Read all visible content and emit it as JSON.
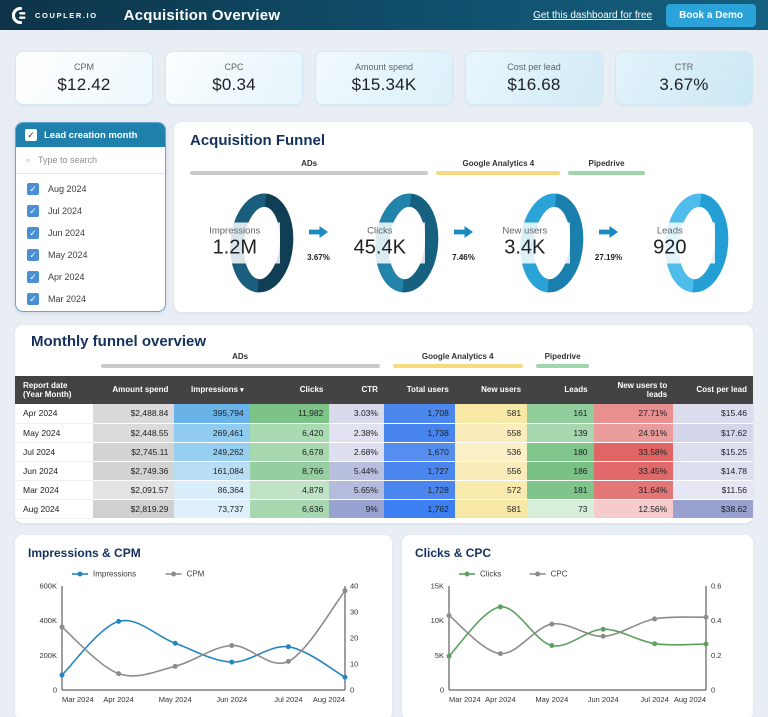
{
  "icons": {
    "check": "✓",
    "sort_desc": "▾",
    "search": "magnifier",
    "arrow": "right-arrow"
  },
  "header": {
    "brand": "COUPLER.IO",
    "title": "Acquisition Overview",
    "link_label": "Get this dashboard for free",
    "cta_label": "Book a Demo"
  },
  "kpis": [
    {
      "label": "CPM",
      "value": "$12.42"
    },
    {
      "label": "CPC",
      "value": "$0.34"
    },
    {
      "label": "Amount spend",
      "value": "$15.34K"
    },
    {
      "label": "Cost per lead",
      "value": "$16.68"
    },
    {
      "label": "CTR",
      "value": "3.67%"
    }
  ],
  "filter": {
    "title": "Lead creation month",
    "search_placeholder": "Type to search",
    "options": [
      {
        "label": "Aug 2024",
        "checked": true
      },
      {
        "label": "Jul 2024",
        "checked": true
      },
      {
        "label": "Jun 2024",
        "checked": true
      },
      {
        "label": "May 2024",
        "checked": true
      },
      {
        "label": "Apr 2024",
        "checked": true
      },
      {
        "label": "Mar 2024",
        "checked": true
      }
    ]
  },
  "funnel": {
    "title": "Acquisition Funnel",
    "groups": [
      {
        "label": "ADs",
        "color": "#c9c9c9",
        "width_pct": 47
      },
      {
        "label": "Google Analytics 4",
        "color": "#f7da7d",
        "width_pct": 24.5
      },
      {
        "label": "Pipedrive",
        "color": "#9fd6aa",
        "width_pct": 15
      }
    ],
    "stages": [
      {
        "label": "Impressions",
        "value": "1.2M",
        "ring_light": "#1a5d7c",
        "ring_dark": "#0f3e55"
      },
      {
        "label": "Clicks",
        "value": "45.4K",
        "ring_light": "#2384ab",
        "ring_dark": "#166080"
      },
      {
        "label": "New users",
        "value": "3.4K",
        "ring_light": "#2aa4d8",
        "ring_dark": "#1b7fae"
      },
      {
        "label": "Leads",
        "value": "920",
        "ring_light": "#4fbdec",
        "ring_dark": "#249fd6"
      }
    ],
    "transitions": [
      "3.67%",
      "7.46%",
      "27.19%"
    ]
  },
  "table": {
    "title": "Monthly funnel overview",
    "groups": [
      {
        "label": "ADs",
        "color": "#c9c9c9",
        "left_pct": 11.6,
        "width_pct": 37.8
      },
      {
        "label": "Google Analytics 4",
        "color": "#f7da7d",
        "left_pct": 51.2,
        "width_pct": 17.6
      },
      {
        "label": "Pipedrive",
        "color": "#9fd6aa",
        "left_pct": 70.6,
        "width_pct": 7.2
      }
    ],
    "columns": [
      "Report date (Year Month)",
      "Amount spend",
      "Impressions",
      "Clicks",
      "CTR",
      "Total users",
      "New users",
      "Leads",
      "New users to leads",
      "Cost per lead"
    ],
    "sorted_column": "Impressions",
    "column_widths_pct": [
      10.6,
      11,
      10.2,
      10.8,
      7.4,
      9.6,
      9.8,
      9,
      10.8,
      10.8
    ],
    "rows": [
      [
        "Apr 2024",
        "$2,488.84",
        "395,794",
        "11,982",
        "3.03%",
        "1,708",
        "581",
        "161",
        "27.71%",
        "$15.46"
      ],
      [
        "May 2024",
        "$2,448.55",
        "269,461",
        "6,420",
        "2.38%",
        "1,738",
        "558",
        "139",
        "24.91%",
        "$17.62"
      ],
      [
        "Jul 2024",
        "$2,745.11",
        "249,262",
        "6,678",
        "2.68%",
        "1,670",
        "536",
        "180",
        "33.58%",
        "$15.25"
      ],
      [
        "Jun 2024",
        "$2,749.36",
        "161,084",
        "8,766",
        "5.44%",
        "1,727",
        "556",
        "186",
        "33.45%",
        "$14.78"
      ],
      [
        "Mar 2024",
        "$2,091.57",
        "86,364",
        "4,878",
        "5.65%",
        "1,728",
        "572",
        "181",
        "31.64%",
        "$11.56"
      ],
      [
        "Aug 2024",
        "$2,819.29",
        "73,737",
        "6,636",
        "9%",
        "1,762",
        "581",
        "73",
        "12.56%",
        "$38.62"
      ]
    ],
    "cell_colors": [
      [
        "#ffffff",
        "#dadada",
        "#68b4e9",
        "#7cc387",
        "#d8daec",
        "#4c87ee",
        "#f8e8a6",
        "#92cd9c",
        "#e88f8f",
        "#dbddee"
      ],
      [
        "#ffffff",
        "#dbdbdb",
        "#90cbf0",
        "#aadab1",
        "#e1e2f1",
        "#4784ee",
        "#faedbb",
        "#a8d8af",
        "#eb9d9d",
        "#d4d7eb"
      ],
      [
        "#ffffff",
        "#d3d3d3",
        "#97cff1",
        "#a7d8ae",
        "#dddff0",
        "#568ef0",
        "#fbf0c6",
        "#80c58c",
        "#e06666",
        "#dcdeee"
      ],
      [
        "#ffffff",
        "#d3d3d3",
        "#b8def6",
        "#95cf9f",
        "#b8bede",
        "#4a86ee",
        "#faecb9",
        "#79c185",
        "#e16969",
        "#dddfef"
      ],
      [
        "#ffffff",
        "#e3e3e3",
        "#d9edfb",
        "#bfe3c4",
        "#b5bbdd",
        "#4a86ee",
        "#f9eaae",
        "#7fc48b",
        "#e37676",
        "#e6e7f4"
      ],
      [
        "#ffffff",
        "#d0d0d0",
        "#def0fc",
        "#a8d8af",
        "#99a2d0",
        "#3d7ff0",
        "#f8e8a6",
        "#d6eeda",
        "#f5cbcb",
        "#98a1cf"
      ]
    ]
  },
  "chart_data": [
    {
      "name": "impressions-cpm-chart",
      "type": "line",
      "title": "Impressions & CPM",
      "x": [
        "Mar 2024",
        "Apr 2024",
        "May 2024",
        "Jun 2024",
        "Jul 2024",
        "Aug 2024"
      ],
      "series": [
        {
          "name": "Impressions",
          "axis": "left",
          "color": "#2386be",
          "values": [
            86364,
            395794,
            269461,
            161084,
            249262,
            73737
          ]
        },
        {
          "name": "CPM",
          "axis": "right",
          "color": "#8c8c8c",
          "values": [
            24.2,
            6.3,
            9.1,
            17.1,
            11.0,
            38.2
          ]
        }
      ],
      "left_axis": {
        "max": 600000,
        "ticks": [
          "0",
          "200K",
          "400K",
          "600K"
        ]
      },
      "right_axis": {
        "max": 40,
        "ticks": [
          "0",
          "10",
          "20",
          "30",
          "40"
        ]
      },
      "legend_position": "top",
      "grid": false
    },
    {
      "name": "clicks-cpc-chart",
      "type": "line",
      "title": "Clicks & CPC",
      "x": [
        "Mar 2024",
        "Apr 2024",
        "May 2024",
        "Jun 2024",
        "Jul 2024",
        "Aug 2024"
      ],
      "series": [
        {
          "name": "Clicks",
          "axis": "left",
          "color": "#5ba261",
          "values": [
            4878,
            11982,
            6420,
            8766,
            6678,
            6636
          ]
        },
        {
          "name": "CPC",
          "axis": "right",
          "color": "#8c8c8c",
          "values": [
            0.43,
            0.21,
            0.38,
            0.31,
            0.41,
            0.42
          ]
        }
      ],
      "left_axis": {
        "max": 15000,
        "ticks": [
          "0",
          "5K",
          "10K",
          "15K"
        ]
      },
      "right_axis": {
        "max": 0.6,
        "ticks": [
          "0",
          "0.2",
          "0.4",
          "0.6"
        ]
      },
      "legend_position": "top",
      "grid": false
    }
  ]
}
